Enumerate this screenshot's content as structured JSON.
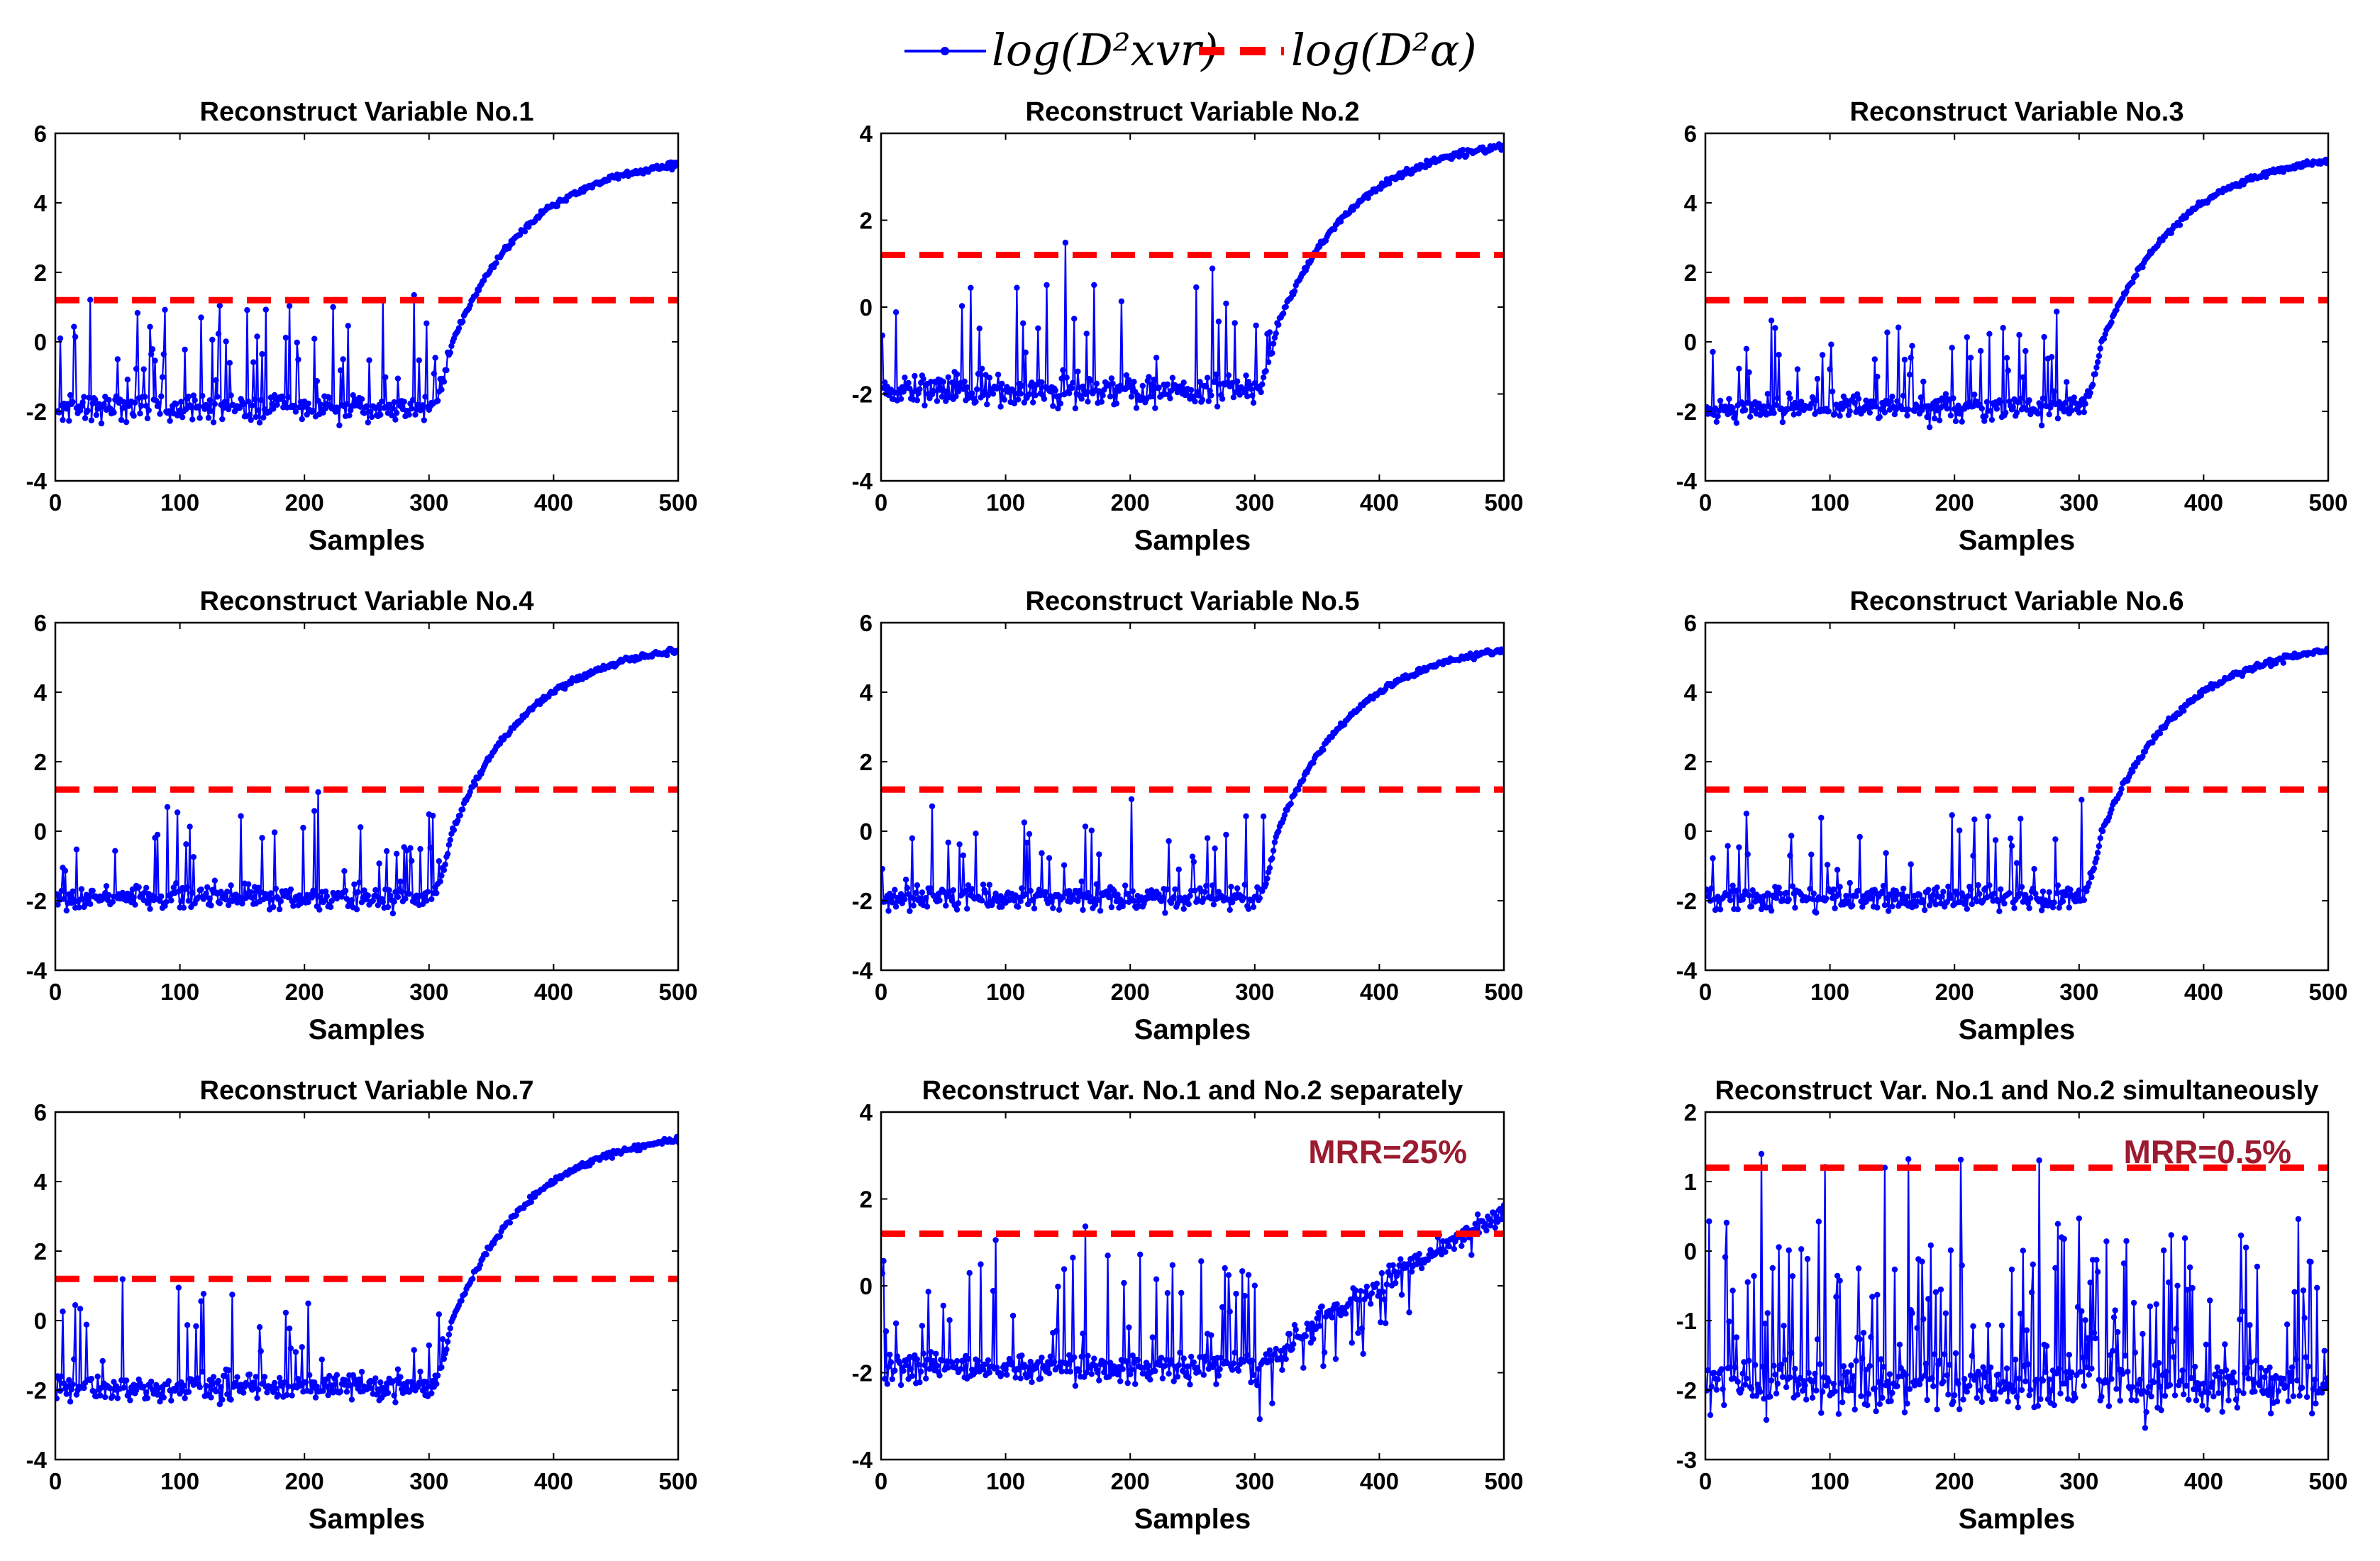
{
  "legend": {
    "series_label": "log(D²xvr)",
    "threshold_label": "log(D²α)",
    "series_color": "#0000ff",
    "threshold_color": "#ff0000"
  },
  "chart_data": [
    {
      "type": "line",
      "title": "Reconstruct Variable No.1",
      "xlabel": "Samples",
      "xlim": [
        0,
        500
      ],
      "ylim": [
        -4,
        6
      ],
      "xticks": [
        0,
        100,
        200,
        300,
        400,
        500
      ],
      "yticks": [
        -4,
        -2,
        0,
        2,
        4,
        6
      ],
      "threshold": 1.2,
      "pattern": "rising",
      "onset": 300,
      "end_value": 5.1,
      "annotation": ""
    },
    {
      "type": "line",
      "title": "Reconstruct Variable No.2",
      "xlabel": "Samples",
      "xlim": [
        0,
        500
      ],
      "ylim": [
        -4,
        4
      ],
      "xticks": [
        0,
        100,
        200,
        300,
        400,
        500
      ],
      "yticks": [
        -4,
        -2,
        0,
        2,
        4
      ],
      "threshold": 1.2,
      "pattern": "rising",
      "onset": 300,
      "end_value": 3.7,
      "annotation": ""
    },
    {
      "type": "line",
      "title": "Reconstruct Variable No.3",
      "xlabel": "Samples",
      "xlim": [
        0,
        500
      ],
      "ylim": [
        -4,
        6
      ],
      "xticks": [
        0,
        100,
        200,
        300,
        400,
        500
      ],
      "yticks": [
        -4,
        -2,
        0,
        2,
        4,
        6
      ],
      "threshold": 1.2,
      "pattern": "rising",
      "onset": 300,
      "end_value": 5.2,
      "annotation": ""
    },
    {
      "type": "line",
      "title": "Reconstruct Variable No.4",
      "xlabel": "Samples",
      "xlim": [
        0,
        500
      ],
      "ylim": [
        -4,
        6
      ],
      "xticks": [
        0,
        100,
        200,
        300,
        400,
        500
      ],
      "yticks": [
        -4,
        -2,
        0,
        2,
        4,
        6
      ],
      "threshold": 1.2,
      "pattern": "rising",
      "onset": 300,
      "end_value": 5.2,
      "annotation": ""
    },
    {
      "type": "line",
      "title": "Reconstruct Variable No.5",
      "xlabel": "Samples",
      "xlim": [
        0,
        500
      ],
      "ylim": [
        -4,
        6
      ],
      "xticks": [
        0,
        100,
        200,
        300,
        400,
        500
      ],
      "yticks": [
        -4,
        -2,
        0,
        2,
        4,
        6
      ],
      "threshold": 1.2,
      "pattern": "rising",
      "onset": 300,
      "end_value": 5.2,
      "annotation": ""
    },
    {
      "type": "line",
      "title": "Reconstruct Variable No.6",
      "xlabel": "Samples",
      "xlim": [
        0,
        500
      ],
      "ylim": [
        -4,
        6
      ],
      "xticks": [
        0,
        100,
        200,
        300,
        400,
        500
      ],
      "yticks": [
        -4,
        -2,
        0,
        2,
        4,
        6
      ],
      "threshold": 1.2,
      "pattern": "rising",
      "onset": 300,
      "end_value": 5.2,
      "annotation": ""
    },
    {
      "type": "line",
      "title": "Reconstruct Variable No.7",
      "xlabel": "Samples",
      "xlim": [
        0,
        500
      ],
      "ylim": [
        -4,
        6
      ],
      "xticks": [
        0,
        100,
        200,
        300,
        400,
        500
      ],
      "yticks": [
        -4,
        -2,
        0,
        2,
        4,
        6
      ],
      "threshold": 1.2,
      "pattern": "rising",
      "onset": 300,
      "end_value": 5.2,
      "annotation": ""
    },
    {
      "type": "line",
      "title": "Reconstruct Var. No.1 and No.2 separately",
      "xlabel": "Samples",
      "xlim": [
        0,
        500
      ],
      "ylim": [
        -4,
        4
      ],
      "xticks": [
        0,
        100,
        200,
        300,
        400,
        500
      ],
      "yticks": [
        -4,
        -2,
        0,
        2,
        4
      ],
      "threshold": 1.2,
      "pattern": "slow",
      "onset": 300,
      "end_value": 1.7,
      "annotation": "MRR=25%"
    },
    {
      "type": "line",
      "title": "Reconstruct Var. No.1 and No.2 simultaneously",
      "xlabel": "Samples",
      "xlim": [
        0,
        500
      ],
      "ylim": [
        -3,
        2
      ],
      "xticks": [
        0,
        100,
        200,
        300,
        400,
        500
      ],
      "yticks": [
        -3,
        -2,
        -1,
        0,
        1,
        2
      ],
      "threshold": 1.2,
      "pattern": "noise",
      "onset": 500,
      "end_value": -1.8,
      "annotation": "MRR=0.5%"
    }
  ]
}
